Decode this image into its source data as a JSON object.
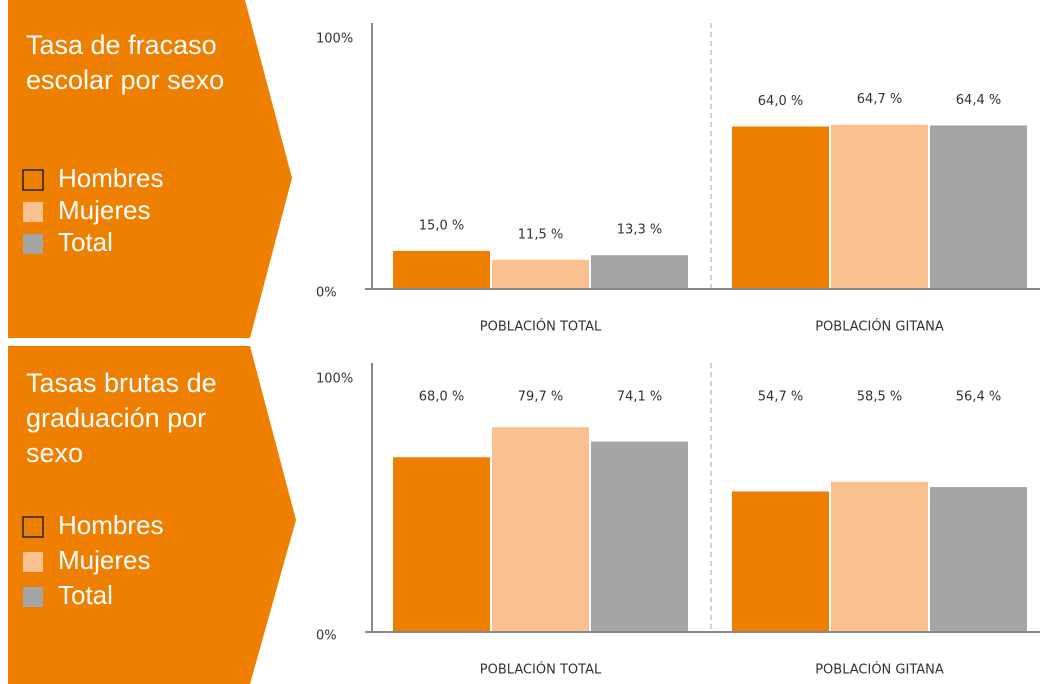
{
  "chart_data": [
    {
      "type": "bar",
      "title": [
        "Tasa de fracaso",
        "escolar por sexo"
      ],
      "categories": [
        "POBLACIÓN TOTAL",
        "POBLACIÓN GITANA"
      ],
      "series": [
        {
          "name": "Hombres",
          "color": "#ef7f00",
          "values": [
            15.0,
            64.0
          ],
          "value_labels": [
            "15,0 %",
            "64,0 %"
          ]
        },
        {
          "name": "Mujeres",
          "color": "#f9c18f",
          "values": [
            11.5,
            64.7
          ],
          "value_labels": [
            "11,5 %",
            "64,7 %"
          ]
        },
        {
          "name": "Total",
          "color": "#a5a5a5",
          "values": [
            13.3,
            64.4
          ],
          "value_labels": [
            "13,3 %",
            "64,4 %"
          ]
        }
      ],
      "ylim": [
        0,
        100
      ],
      "yticks": [
        {
          "value": 0,
          "label": "0%"
        },
        {
          "value": 100,
          "label": "100%"
        }
      ]
    },
    {
      "type": "bar",
      "title": [
        "Tasas brutas de",
        "graduación por",
        "sexo"
      ],
      "categories": [
        "POBLACIÓN TOTAL",
        "POBLACIÓN GITANA"
      ],
      "series": [
        {
          "name": "Hombres",
          "color": "#ef7f00",
          "values": [
            68.0,
            54.7
          ],
          "value_labels": [
            "68,0 %",
            "54,7 %"
          ]
        },
        {
          "name": "Mujeres",
          "color": "#f9c18f",
          "values": [
            79.7,
            58.5
          ],
          "value_labels": [
            "79,7 %",
            "58,5 %"
          ]
        },
        {
          "name": "Total",
          "color": "#a5a5a5",
          "values": [
            74.1,
            56.4
          ],
          "value_labels": [
            "74,1 %",
            "56,4 %"
          ]
        }
      ],
      "ylim": [
        0,
        100
      ],
      "yticks": [
        {
          "value": 0,
          "label": "0%"
        },
        {
          "value": 100,
          "label": "100%"
        }
      ]
    }
  ]
}
